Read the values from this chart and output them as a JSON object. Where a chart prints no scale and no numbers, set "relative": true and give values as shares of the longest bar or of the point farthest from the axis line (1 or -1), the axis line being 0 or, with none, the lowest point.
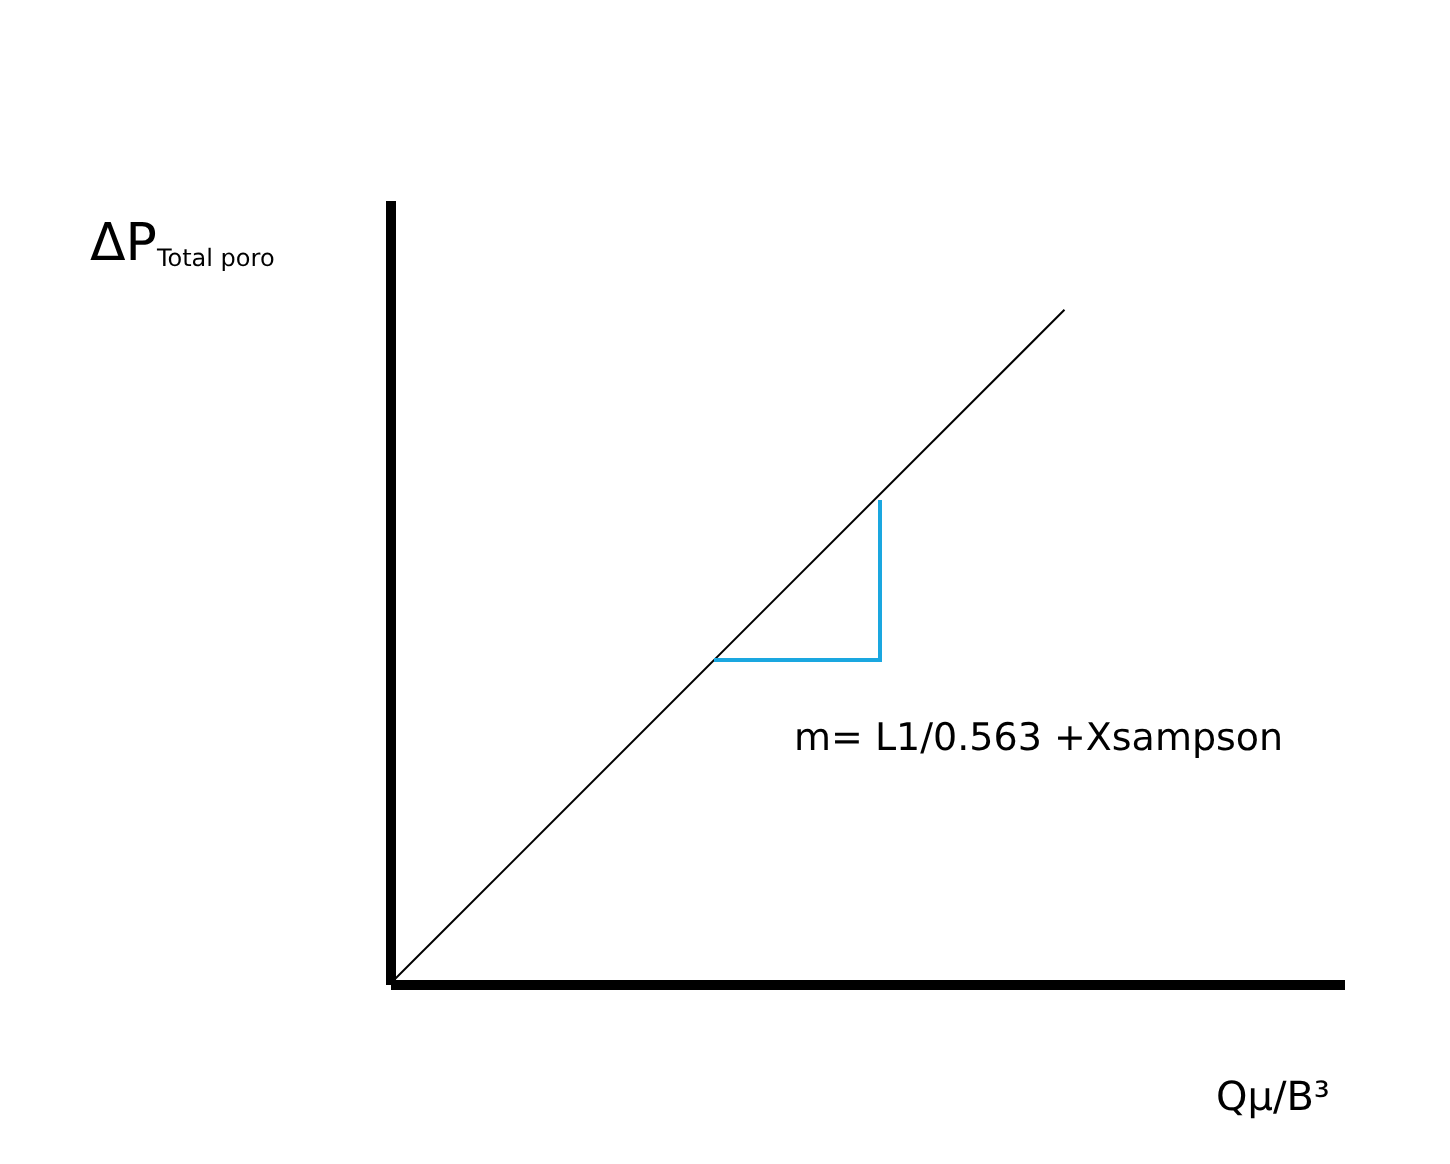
{
  "chart_data": {
    "type": "line",
    "relative": true,
    "xlabel": "Qμ/B³",
    "ylabel": "ΔP$_{Total poro}$",
    "categories": [
      null,
      null
    ],
    "series": [
      {
        "color": "#000000",
        "values": [
          0,
          1
        ]
      }
    ],
    "annotations": [
      "m= L1/0.563 +Xsampson"
    ]
  }
}
